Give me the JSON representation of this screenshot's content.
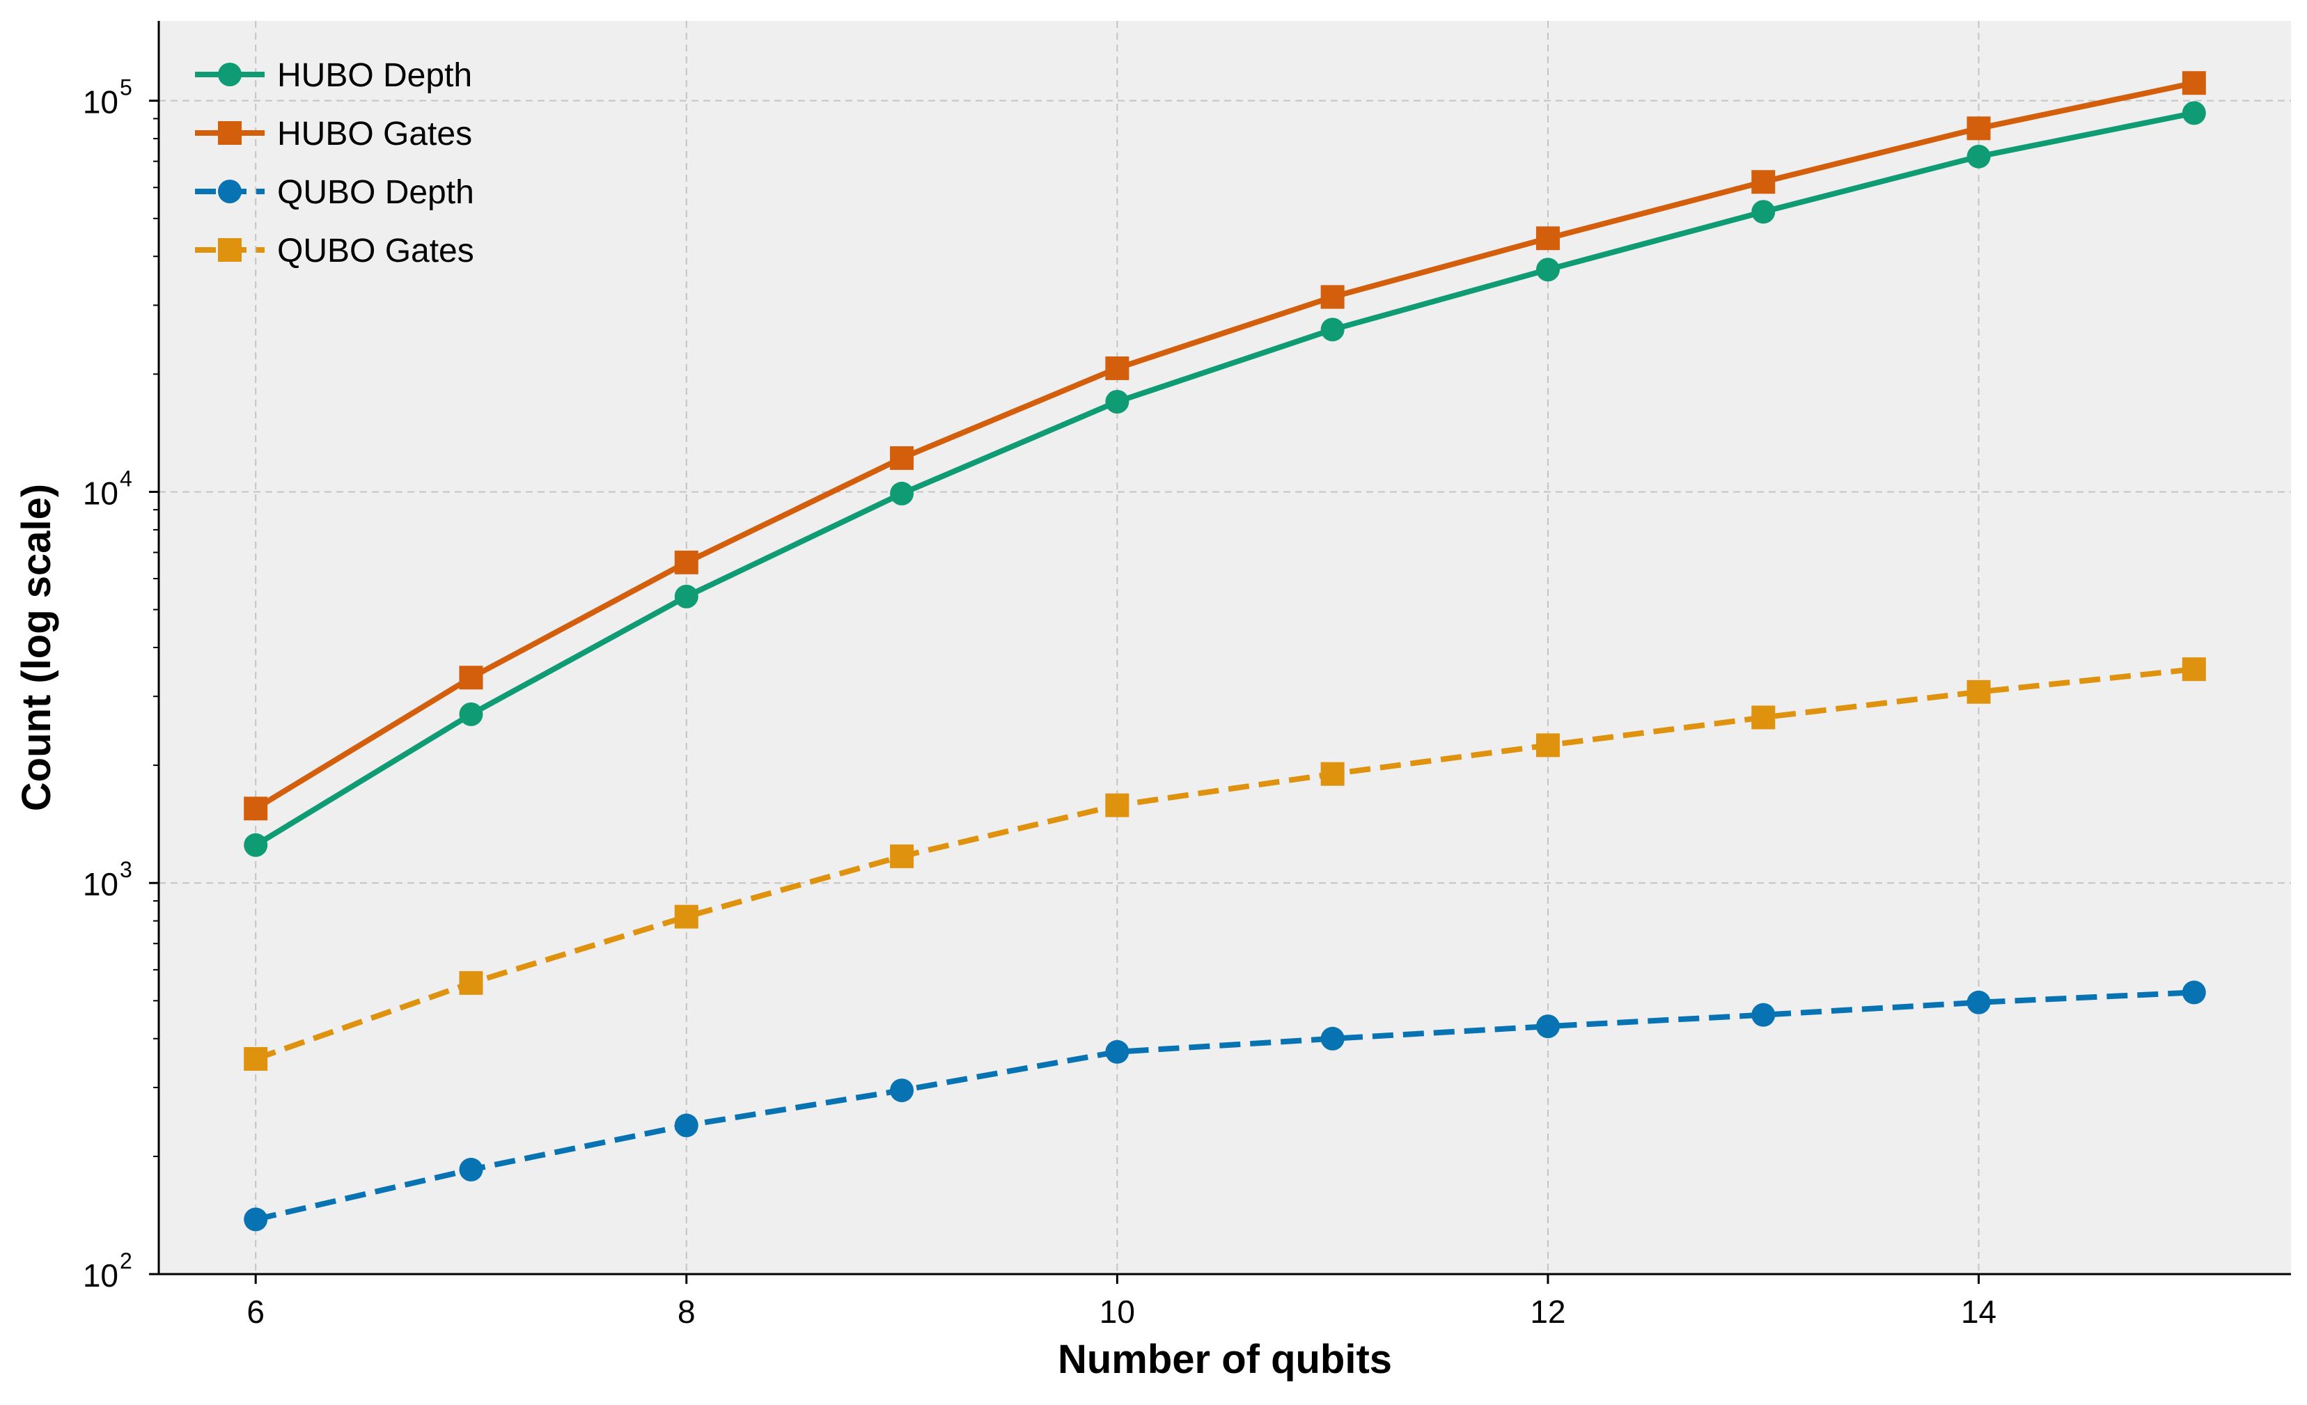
{
  "chart_data": {
    "type": "line",
    "xlabel": "Number of qubits",
    "ylabel": "Count (log scale)",
    "x": [
      6,
      7,
      8,
      9,
      10,
      11,
      12,
      13,
      14,
      15
    ],
    "xlim": [
      5.55,
      15.45
    ],
    "ylim": [
      100,
      160000
    ],
    "yscale": "log",
    "xticks": [
      6,
      8,
      10,
      12,
      14
    ],
    "yticks": [
      100,
      1000,
      10000,
      100000
    ],
    "ytick_labels": [
      {
        "base": "10",
        "exp": "2"
      },
      {
        "base": "10",
        "exp": "3"
      },
      {
        "base": "10",
        "exp": "4"
      },
      {
        "base": "10",
        "exp": "5"
      }
    ],
    "grid": true,
    "legend_position": "top-left",
    "series": [
      {
        "name": "HUBO Depth",
        "marker": "circle",
        "dash": "solid",
        "color": "#0f9b74",
        "values": [
          1250,
          2700,
          5400,
          9900,
          17000,
          26000,
          37000,
          52000,
          72000,
          93000
        ]
      },
      {
        "name": "HUBO Gates",
        "marker": "square",
        "dash": "solid",
        "color": "#d35f0d",
        "values": [
          1550,
          3350,
          6600,
          12200,
          20700,
          31500,
          44500,
          62000,
          85000,
          111000
        ]
      },
      {
        "name": "QUBO Depth",
        "marker": "circle",
        "dash": "dashed",
        "color": "#0873b2",
        "values": [
          138,
          185,
          240,
          295,
          370,
          400,
          430,
          460,
          495,
          525
        ]
      },
      {
        "name": "QUBO Gates",
        "marker": "square",
        "dash": "dashed",
        "color": "#df920d",
        "values": [
          355,
          555,
          820,
          1170,
          1580,
          1900,
          2250,
          2650,
          3080,
          3520
        ]
      }
    ]
  }
}
